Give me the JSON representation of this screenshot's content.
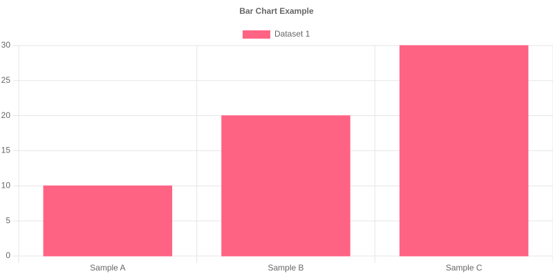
{
  "chart_data": {
    "type": "bar",
    "title": "Bar Chart Example",
    "categories": [
      "Sample A",
      "Sample B",
      "Sample C"
    ],
    "series": [
      {
        "name": "Dataset 1",
        "color": "#ff6384",
        "values": [
          10,
          20,
          30
        ]
      }
    ],
    "ylim": [
      0,
      30
    ],
    "yticks": [
      0,
      5,
      10,
      15,
      20,
      25,
      30
    ],
    "grid": true,
    "legend": "top"
  }
}
